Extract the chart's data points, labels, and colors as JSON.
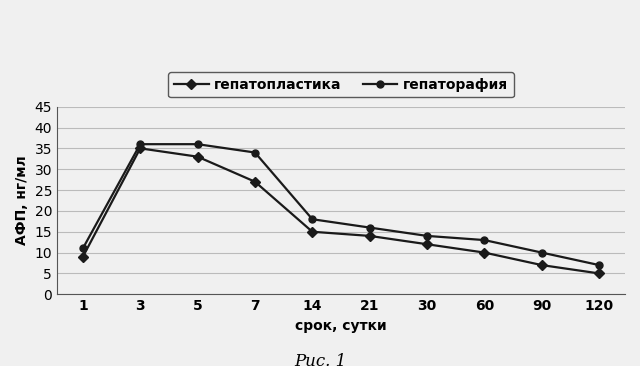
{
  "x_labels": [
    1,
    3,
    5,
    7,
    14,
    21,
    30,
    60,
    90,
    120
  ],
  "hepatoplastika": [
    9,
    35,
    33,
    27,
    15,
    14,
    12,
    10,
    7,
    5
  ],
  "hepatorafiya": [
    11,
    36,
    36,
    34,
    18,
    16,
    14,
    13,
    10,
    7
  ],
  "legend_1": "гепатопластика",
  "legend_2": "гепаторафия",
  "xlabel": "срок, сутки",
  "ylabel": "АФП, нг/мл",
  "caption": "Рис. 1",
  "ylim": [
    0,
    45
  ],
  "yticks": [
    0,
    5,
    10,
    15,
    20,
    25,
    30,
    35,
    40,
    45
  ],
  "line_color": "#1a1a1a",
  "marker_style_1": "D",
  "marker_style_2": "o",
  "marker_size": 5,
  "line_width": 1.6,
  "grid_color": "#bbbbbb",
  "bg_color": "#f0f0f0",
  "label_fontsize": 10,
  "tick_fontsize": 10,
  "legend_fontsize": 10,
  "caption_fontsize": 12
}
